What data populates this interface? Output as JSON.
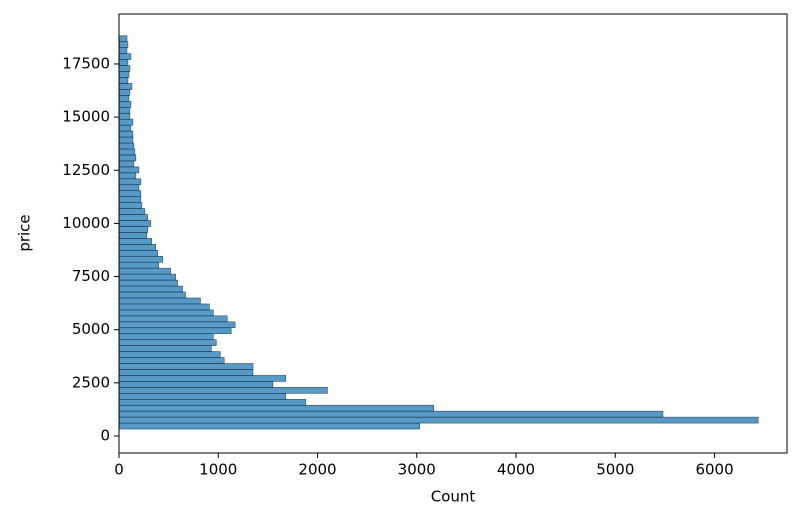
{
  "chart_data": {
    "type": "histogram",
    "orientation": "horizontal",
    "xlabel": "Count",
    "ylabel": "price",
    "bins": [
      326,
      606,
      887,
      1167,
      1447,
      1727,
      2008,
      2288,
      2568,
      2849,
      3129,
      3409,
      3690,
      3970,
      4250,
      4530,
      4811,
      5091,
      5371,
      5652,
      5932,
      6212,
      6493,
      6773,
      7053,
      7333,
      7614,
      7894,
      8174,
      8455,
      8735,
      9015,
      9296,
      9576,
      9856,
      10136,
      10417,
      10697,
      10977,
      11258,
      11538,
      11818,
      12099,
      12379,
      12659,
      12940,
      13220,
      13500,
      13780,
      14061,
      14341,
      14621,
      14902,
      15182,
      15462,
      15743,
      16023,
      16303,
      16583,
      16864,
      17144,
      17424,
      17705,
      17985,
      18265,
      18546,
      18826
    ],
    "values": [
      3030,
      6440,
      5480,
      3170,
      1880,
      1680,
      2100,
      1550,
      1680,
      1350,
      1350,
      1060,
      1020,
      930,
      980,
      950,
      1130,
      1170,
      1090,
      950,
      910,
      820,
      670,
      640,
      590,
      570,
      520,
      400,
      440,
      390,
      370,
      330,
      280,
      290,
      320,
      290,
      260,
      230,
      220,
      220,
      200,
      220,
      170,
      200,
      150,
      170,
      160,
      150,
      140,
      140,
      120,
      140,
      110,
      110,
      120,
      100,
      110,
      130,
      90,
      100,
      110,
      90,
      120,
      80,
      90,
      80
    ],
    "color": "#1f77b4",
    "xlim": [
      0,
      6730
    ],
    "xticks": [
      0,
      1000,
      2000,
      3000,
      4000,
      5000,
      6000
    ],
    "ylim": [
      -800,
      19850
    ],
    "yticks": [
      0,
      2500,
      5000,
      7500,
      10000,
      12500,
      15000,
      17500
    ]
  }
}
